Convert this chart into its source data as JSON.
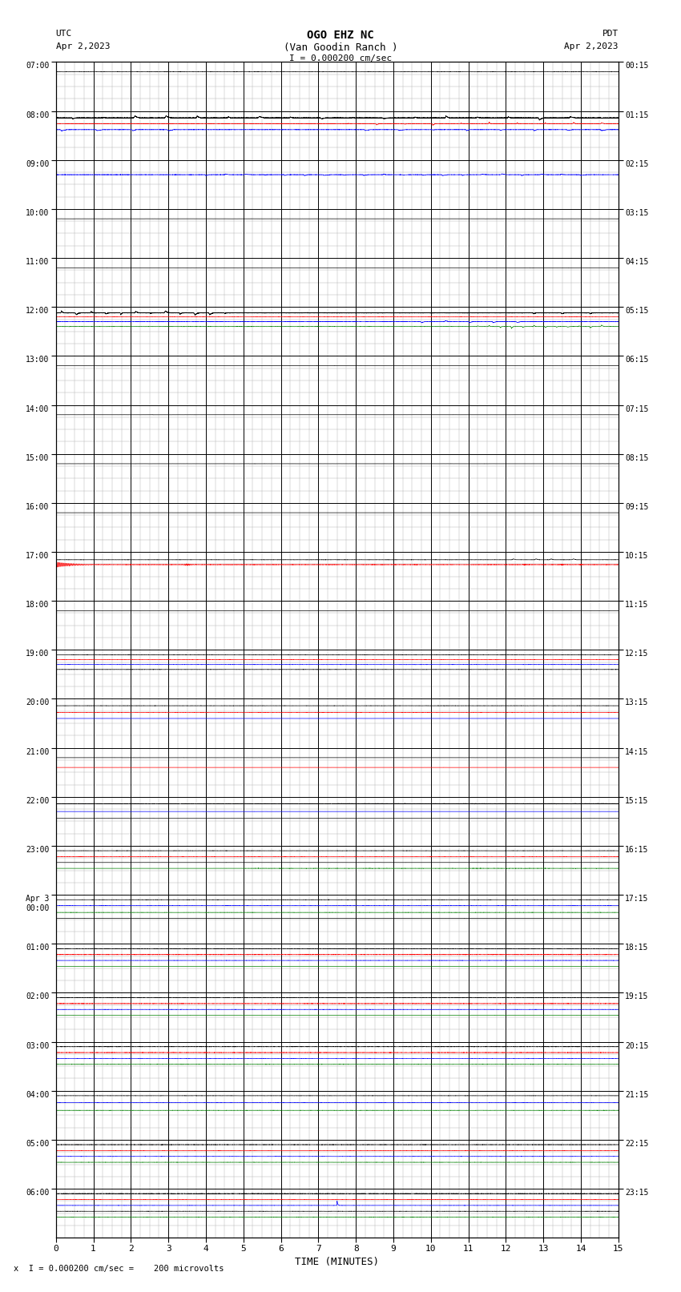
{
  "title_line1": "OGO EHZ NC",
  "title_line2": "(Van Goodin Ranch )",
  "title_line3": "I = 0.000200 cm/sec",
  "left_label": "UTC",
  "left_date": "Apr 2,2023",
  "right_label": "PDT",
  "right_date": "Apr 2,2023",
  "xlabel": "TIME (MINUTES)",
  "footer": "x  I = 0.000200 cm/sec =    200 microvolts",
  "background_color": "#ffffff",
  "major_grid_color": "#000000",
  "minor_grid_color": "#aaaaaa",
  "seed": 12345,
  "left_times": [
    "07:00",
    "08:00",
    "09:00",
    "10:00",
    "11:00",
    "12:00",
    "13:00",
    "14:00",
    "15:00",
    "16:00",
    "17:00",
    "18:00",
    "19:00",
    "20:00",
    "21:00",
    "22:00",
    "23:00",
    "Apr 3\n00:00",
    "01:00",
    "02:00",
    "03:00",
    "04:00",
    "05:00",
    "06:00"
  ],
  "right_times": [
    "00:15",
    "01:15",
    "02:15",
    "03:15",
    "04:15",
    "05:15",
    "06:15",
    "07:15",
    "08:15",
    "09:15",
    "10:15",
    "11:15",
    "12:15",
    "13:15",
    "14:15",
    "15:15",
    "16:15",
    "17:15",
    "18:15",
    "19:15",
    "20:15",
    "21:15",
    "22:15",
    "23:15"
  ],
  "num_hours": 24,
  "sub_traces_per_hour": 4,
  "colors": [
    "#000000",
    "#ff0000",
    "#0000ff",
    "#008000"
  ]
}
